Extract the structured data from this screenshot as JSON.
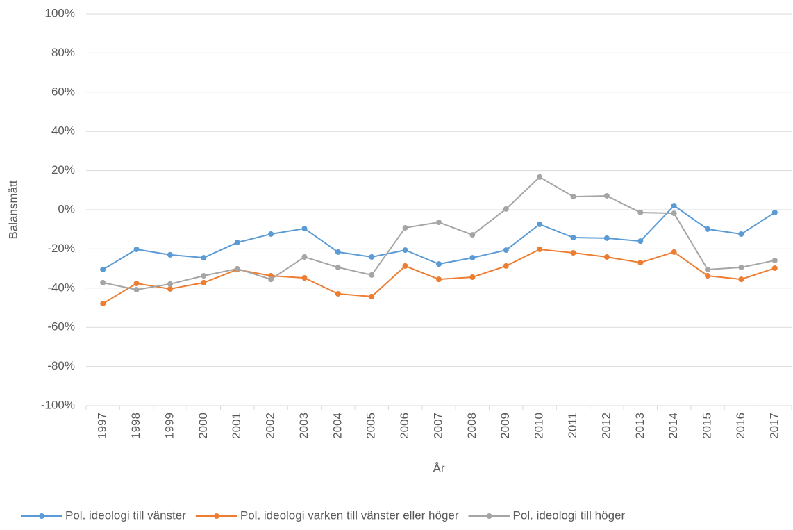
{
  "chart_data": {
    "type": "line",
    "xlabel": "År",
    "ylabel": "Balansmått",
    "categories": [
      "1997",
      "1998",
      "1999",
      "2000",
      "2001",
      "2002",
      "2003",
      "2004",
      "2005",
      "2006",
      "2007",
      "2008",
      "2009",
      "2010",
      "2011",
      "2012",
      "2013",
      "2014",
      "2015",
      "2016",
      "2017"
    ],
    "series": [
      {
        "name": "Pol. ideologi till vänster",
        "color": "#5b9bd5",
        "values": [
          -30.5,
          -20.2,
          -23,
          -24.5,
          -16.7,
          -12.4,
          -9.6,
          -21.6,
          -24.1,
          -20.6,
          -27.7,
          -24.5,
          -20.6,
          -7.4,
          -14.2,
          -14.5,
          -16,
          2.1,
          -9.9,
          -12.4,
          -1.4
        ]
      },
      {
        "name": "Pol. ideologi varken till vänster eller höger",
        "color": "#ed7d31",
        "values": [
          -47.9,
          -37.6,
          -40.4,
          -37.2,
          -30.5,
          -33.7,
          -34.8,
          -42.9,
          -44.3,
          -28.7,
          -35.5,
          -34.4,
          -28.7,
          -20.2,
          -22,
          -24.1,
          -27,
          -21.6,
          -33.7,
          -35.5,
          -29.8
        ]
      },
      {
        "name": "Pol. ideologi till höger",
        "color": "#a5a5a5",
        "values": [
          -37.2,
          -40.8,
          -37.9,
          -33.7,
          -30.1,
          -35.5,
          -24.1,
          -29.4,
          -33.3,
          -9.2,
          -6.4,
          -12.8,
          0.4,
          16.7,
          6.7,
          7.1,
          -1.4,
          -1.8,
          -30.5,
          -29.4,
          -25.9
        ]
      }
    ],
    "ylim": [
      -100,
      100
    ],
    "yticks": [
      {
        "value": -100,
        "label": "-100%"
      },
      {
        "value": -80,
        "label": "-80%"
      },
      {
        "value": -60,
        "label": "-60%"
      },
      {
        "value": -40,
        "label": "-40%"
      },
      {
        "value": -20,
        "label": "-20%"
      },
      {
        "value": 0,
        "label": "0%"
      },
      {
        "value": 20,
        "label": "20%"
      },
      {
        "value": 40,
        "label": "40%"
      },
      {
        "value": 60,
        "label": "60%"
      },
      {
        "value": 80,
        "label": "80%"
      },
      {
        "value": 100,
        "label": "100%"
      }
    ],
    "grid": true,
    "legend": "bottom"
  }
}
